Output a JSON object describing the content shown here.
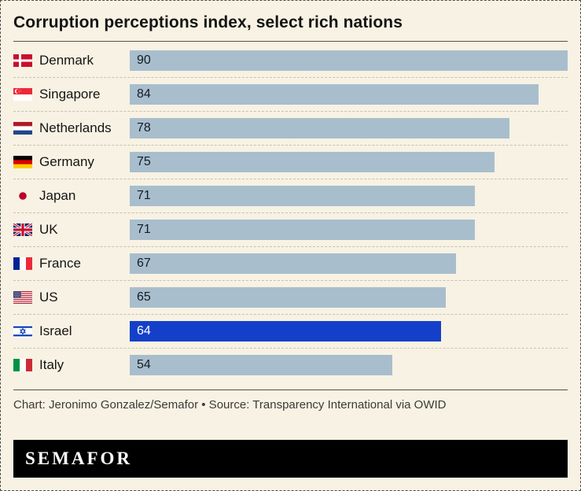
{
  "title": "Corruption perceptions index, select rich nations",
  "chart_data": {
    "type": "bar",
    "orientation": "horizontal",
    "categories": [
      "Denmark",
      "Singapore",
      "Netherlands",
      "Germany",
      "Japan",
      "UK",
      "France",
      "US",
      "Israel",
      "Italy"
    ],
    "values": [
      90,
      84,
      78,
      75,
      71,
      71,
      67,
      65,
      64,
      54
    ],
    "value_labels_inside_bars": true,
    "highlight_category": "Israel",
    "xlim": [
      0,
      90
    ],
    "bar_color": "#a8becd",
    "highlight_color": "#1440c9",
    "background_color": "#f7f2e3",
    "legend": "none",
    "grid": "off"
  },
  "footer": {
    "credit": "Chart: Jeronimo Gonzalez/Semafor • Source: Transparency International via OWID",
    "logo": "SEMAFOR"
  }
}
